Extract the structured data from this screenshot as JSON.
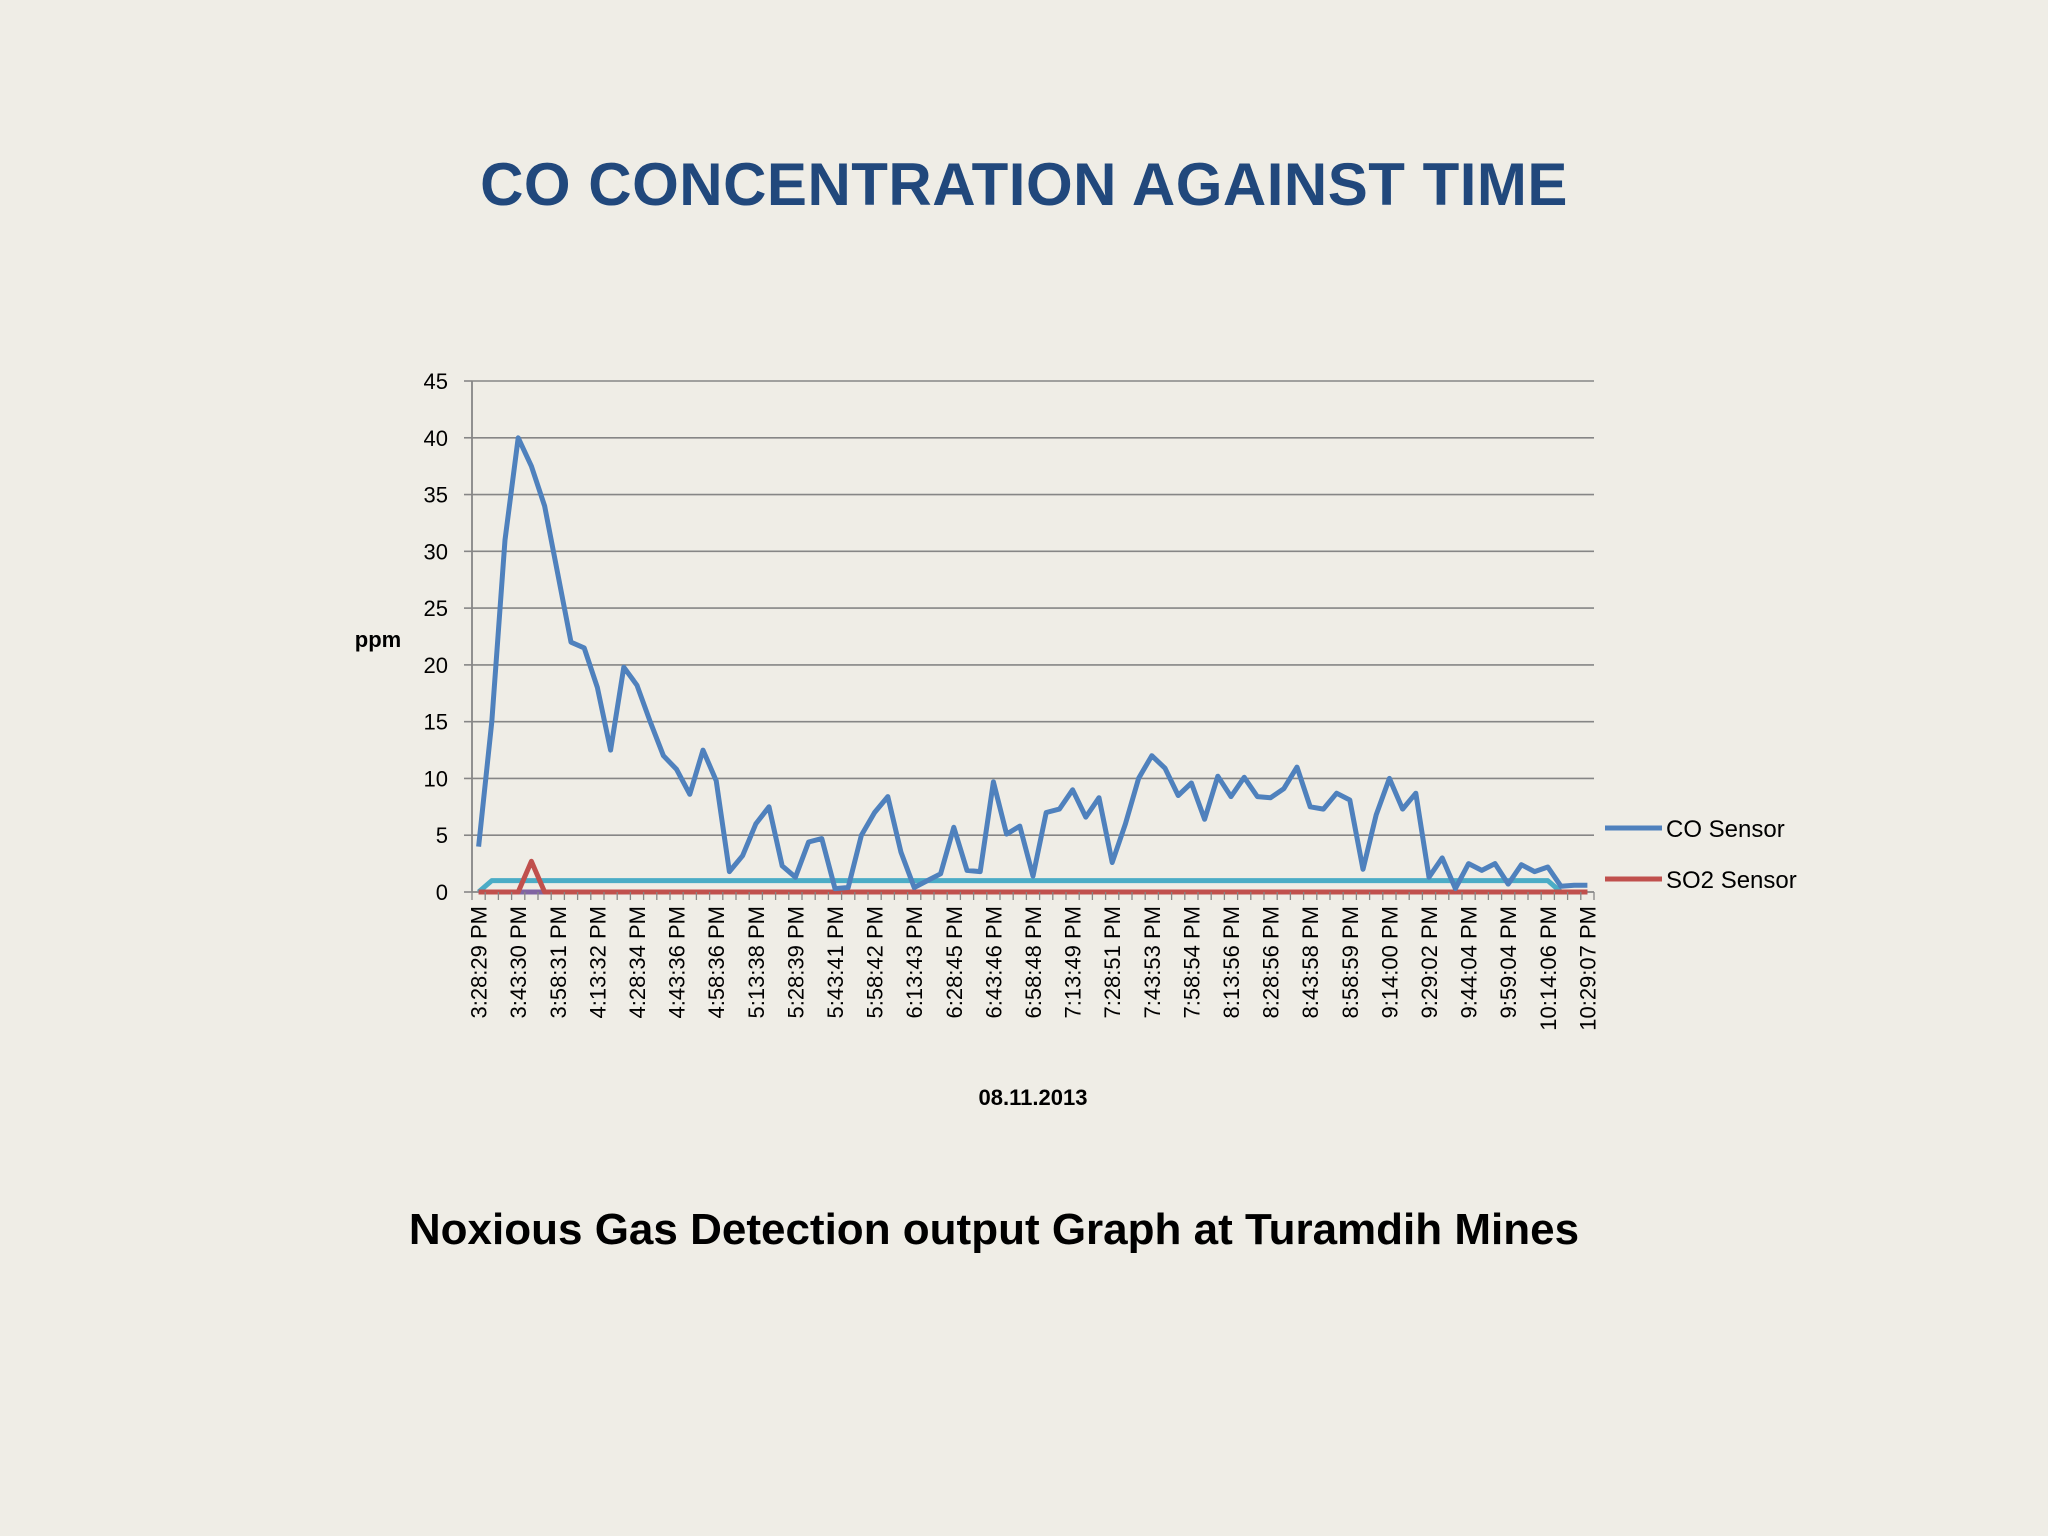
{
  "slide": {
    "title": "CO  CONCENTRATION AGAINST TIME",
    "caption": "Noxious Gas Detection output  Graph at Turamdih Mines"
  },
  "chart_data": {
    "type": "line",
    "title": "",
    "xlabel": "08.11.2013",
    "ylabel": "ppm",
    "ylim": [
      0,
      45
    ],
    "yticks": [
      0,
      5,
      10,
      15,
      20,
      25,
      30,
      35,
      40,
      45
    ],
    "grid": true,
    "legend_position": "right",
    "category_labels": [
      "3:28:29 PM",
      "3:43:30 PM",
      "3:58:31 PM",
      "4:13:32 PM",
      "4:28:34 PM",
      "4:43:36 PM",
      "4:58:36 PM",
      "5:13:38 PM",
      "5:28:39 PM",
      "5:43:41 PM",
      "5:58:42 PM",
      "6:13:43 PM",
      "6:28:45 PM",
      "6:43:46 PM",
      "6:58:48 PM",
      "7:13:49 PM",
      "7:28:51 PM",
      "7:43:53 PM",
      "7:58:54 PM",
      "8:13:56 PM",
      "8:28:56 PM",
      "8:43:58 PM",
      "8:58:59 PM",
      "9:14:00 PM",
      "9:29:02 PM",
      "9:44:04 PM",
      "9:59:04 PM",
      "10:14:06 PM",
      "10:29:07 PM"
    ],
    "series": [
      {
        "name": "CO Sensor",
        "color": "#4f81bd",
        "values": [
          4,
          15,
          31,
          40,
          37.5,
          34,
          28,
          22,
          21.5,
          18,
          12.5,
          19.8,
          18.2,
          15,
          12,
          10.8,
          8.6,
          12.5,
          9.8,
          1.8,
          3.2,
          6,
          7.5,
          2.3,
          1.3,
          4.4,
          4.7,
          0.3,
          0.4,
          5,
          7,
          8.4,
          3.5,
          0.4,
          1,
          1.6,
          5.7,
          1.9,
          1.8,
          9.7,
          5.1,
          5.8,
          1.4,
          7,
          7.3,
          9,
          6.6,
          8.3,
          2.6,
          6,
          10,
          12,
          10.9,
          8.5,
          9.6,
          6.4,
          10.2,
          8.4,
          10.1,
          8.4,
          8.3,
          9.1,
          11,
          7.5,
          7.3,
          8.7,
          8.1,
          2,
          6.8,
          10,
          7.3,
          8.7,
          1.3,
          3,
          0.3,
          2.5,
          1.9,
          2.5,
          0.7,
          2.4,
          1.8,
          2.2,
          0.5,
          0.6,
          0.6
        ]
      },
      {
        "name": "SO2 Sensor",
        "color": "#c0504d",
        "values": [
          0,
          0,
          0,
          0,
          2.7,
          0,
          0,
          0,
          0,
          0,
          0,
          0,
          0,
          0,
          0,
          0,
          0,
          0,
          0,
          0,
          0,
          0,
          0,
          0,
          0,
          0,
          0,
          0,
          0,
          0,
          0,
          0,
          0,
          0,
          0,
          0,
          0,
          0,
          0,
          0,
          0,
          0,
          0,
          0,
          0,
          0,
          0,
          0,
          0,
          0,
          0,
          0,
          0,
          0,
          0,
          0,
          0,
          0,
          0,
          0,
          0,
          0,
          0,
          0,
          0,
          0,
          0,
          0,
          0,
          0,
          0,
          0,
          0,
          0,
          0,
          0,
          0,
          0,
          0,
          0,
          0,
          0,
          0,
          0,
          0
        ]
      },
      {
        "color": "#8064a2",
        "values": [
          0,
          0,
          0,
          0,
          0,
          0,
          0,
          0,
          0,
          0,
          0,
          0,
          0,
          0,
          0,
          0,
          0,
          0,
          0,
          0,
          0,
          0,
          0,
          0,
          0,
          0,
          0,
          0,
          0,
          0,
          0,
          0,
          0,
          0,
          0,
          0,
          0,
          0,
          0,
          0,
          0,
          0,
          0,
          0,
          0,
          0,
          0,
          0,
          0,
          0,
          0,
          0,
          0,
          0,
          0,
          0,
          0,
          0,
          0,
          0,
          0,
          0,
          0,
          0,
          0,
          0,
          0,
          0,
          0,
          0,
          0,
          0,
          0,
          0,
          0,
          0,
          0,
          0,
          0,
          0,
          0,
          0,
          0,
          0,
          0
        ]
      },
      {
        "color": "#4bacc6",
        "values": [
          0,
          1,
          1,
          1,
          1,
          1,
          1,
          1,
          1,
          1,
          1,
          1,
          1,
          1,
          1,
          1,
          1,
          1,
          1,
          1,
          1,
          1,
          1,
          1,
          1,
          1,
          1,
          1,
          1,
          1,
          1,
          1,
          1,
          1,
          1,
          1,
          1,
          1,
          1,
          1,
          1,
          1,
          1,
          1,
          1,
          1,
          1,
          1,
          1,
          1,
          1,
          1,
          1,
          1,
          1,
          1,
          1,
          1,
          1,
          1,
          1,
          1,
          1,
          1,
          1,
          1,
          1,
          1,
          1,
          1,
          1,
          1,
          1,
          1,
          1,
          1,
          1,
          1,
          1,
          1,
          1,
          1,
          0,
          0,
          0
        ]
      }
    ]
  }
}
